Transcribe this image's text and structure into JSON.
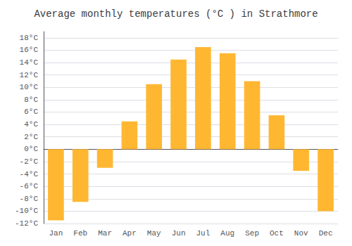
{
  "chart_data": {
    "type": "bar",
    "title": "Average monthly temperatures (°C ) in Strathmore",
    "categories": [
      "Jan",
      "Feb",
      "Mar",
      "Apr",
      "May",
      "Jun",
      "Jul",
      "Aug",
      "Sep",
      "Oct",
      "Nov",
      "Dec"
    ],
    "values": [
      -11.5,
      -8.5,
      -3.0,
      4.5,
      10.5,
      14.5,
      16.5,
      15.5,
      11.0,
      5.5,
      -3.5,
      -10.0
    ],
    "color": "#FFB732",
    "ylim": [
      -12,
      19
    ],
    "yticks": [
      {
        "value": -12,
        "label": "-12°C"
      },
      {
        "value": -10,
        "label": "-10°C"
      },
      {
        "value": -8,
        "label": "-8°C"
      },
      {
        "value": -6,
        "label": "-6°C"
      },
      {
        "value": -4,
        "label": "-4°C"
      },
      {
        "value": -2,
        "label": "-2°C"
      },
      {
        "value": 0,
        "label": "0°C"
      },
      {
        "value": 2,
        "label": "2°C"
      },
      {
        "value": 4,
        "label": "4°C"
      },
      {
        "value": 6,
        "label": "6°C"
      },
      {
        "value": 8,
        "label": "8°C"
      },
      {
        "value": 10,
        "label": "10°C"
      },
      {
        "value": 12,
        "label": "12°C"
      },
      {
        "value": 14,
        "label": "14°C"
      },
      {
        "value": 16,
        "label": "16°C"
      },
      {
        "value": 18,
        "label": "18°C"
      }
    ],
    "grid": true
  }
}
